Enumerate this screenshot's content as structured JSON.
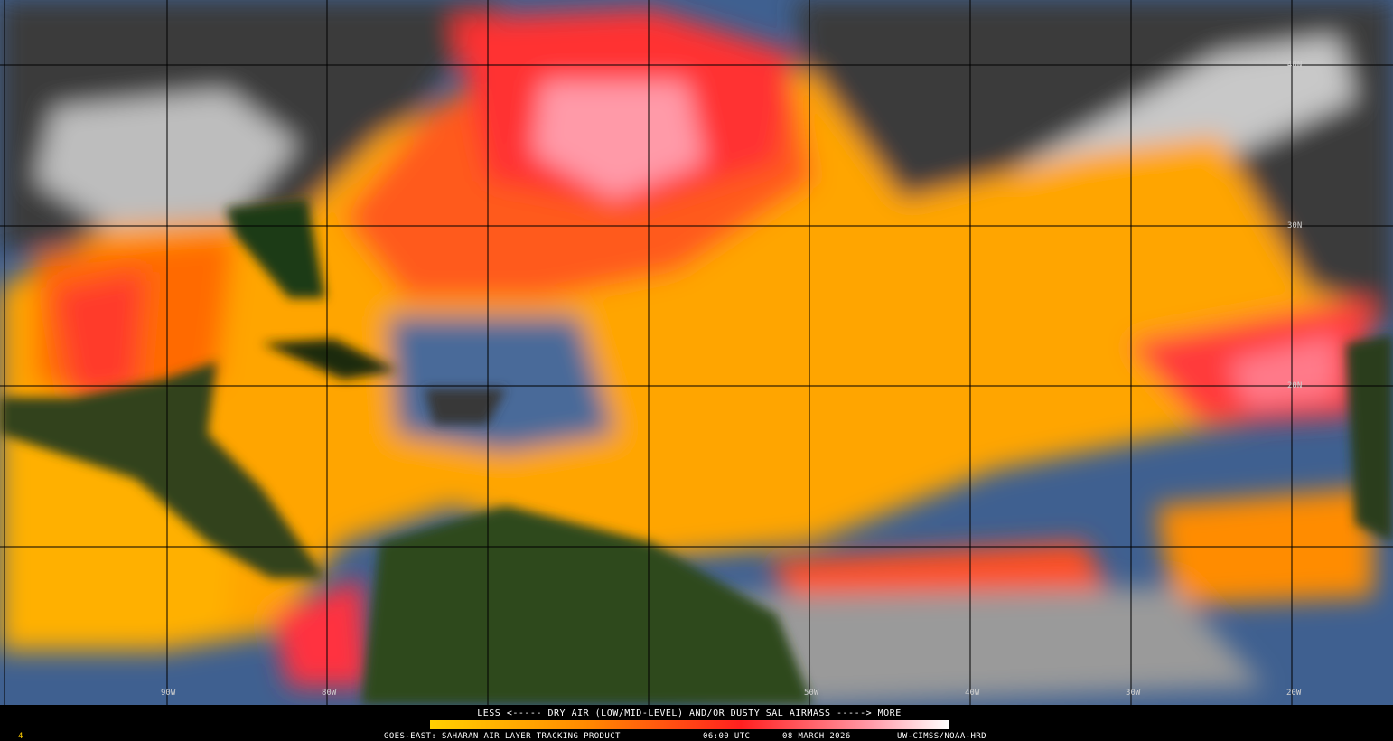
{
  "map": {
    "lat_labels": [
      "40N",
      "30N",
      "20N"
    ],
    "lon_labels": [
      "90W",
      "80W",
      "50W",
      "40W",
      "30W",
      "20W"
    ],
    "legend": {
      "text": "LESS <----- DRY AIR (LOW/MID-LEVEL) AND/OR DUSTY SAL AIRMASS -----> MORE"
    },
    "footer": {
      "product": "GOES-EAST: SAHARAN AIR LAYER TRACKING PRODUCT",
      "time": "06:00 UTC",
      "date": "08 MARCH 2026",
      "credit": "UW-CIMSS/NOAA-HRD",
      "frame": "4"
    }
  }
}
